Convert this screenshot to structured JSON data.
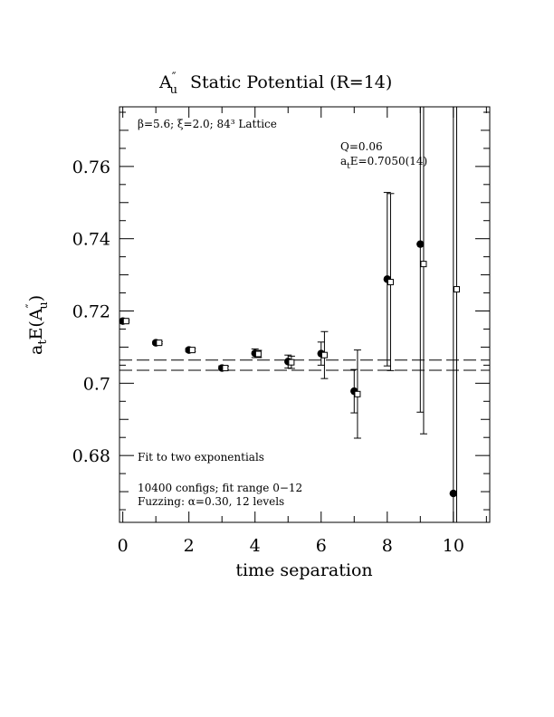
{
  "chart_data": {
    "type": "scatter",
    "title": "A″u Static Potential (R=14)",
    "title_parts": {
      "main": "A",
      "sup": "″",
      "sub": "u",
      "rest": "Static Potential (R=14)"
    },
    "xlabel": "time separation",
    "ylabel": "atE(A″u)",
    "ylabel_parts": {
      "a": "a",
      "a_sub": "t",
      "mid": "E(A",
      "sup": "″",
      "sub": "u",
      "end": ")"
    },
    "xlim": [
      -0.1,
      11.1
    ],
    "ylim": [
      0.6615,
      0.7765
    ],
    "x_ticks": [
      0,
      2,
      4,
      6,
      8,
      10
    ],
    "y_ticks": [
      0.68,
      0.7,
      0.72,
      0.74,
      0.76
    ],
    "x_tick_labels": [
      "0",
      "2",
      "4",
      "6",
      "8",
      "10"
    ],
    "y_tick_labels": [
      "0.68",
      "0.7",
      "0.72",
      "0.74",
      "0.76"
    ],
    "annotations": {
      "lattice": "β=5.6; ξ=2.0; 84³ Lattice",
      "q": "Q=0.06",
      "ate_prefix": "a",
      "ate_sub": "t",
      "ate_rest": "E=0.7050(14)",
      "fit": "Fit to two exponentials",
      "configs": "10400 configs; fit range 0−12",
      "fuzzing": "Fuzzing: α=0.30, 12 levels"
    },
    "series": [
      {
        "marker": "filled-circle",
        "x": [
          0,
          1,
          2,
          3,
          4,
          5,
          6,
          7,
          8,
          9,
          10
        ],
        "y": [
          0.7172,
          0.7112,
          0.7092,
          0.7042,
          0.7083,
          0.706,
          0.7082,
          0.6978,
          0.7288,
          0.7385,
          0.6695
        ],
        "err": [
          0.0004,
          0.0004,
          0.0005,
          0.0006,
          0.0012,
          0.0018,
          0.0032,
          0.006,
          0.024,
          0.0465,
          0.14
        ]
      },
      {
        "marker": "open-square",
        "x": [
          0.1,
          1.1,
          2.1,
          3.1,
          4.1,
          5.1,
          6.1,
          7.1,
          8.1,
          9.1,
          10.1
        ],
        "y": [
          0.7172,
          0.7112,
          0.7092,
          0.7042,
          0.7081,
          0.7058,
          0.7078,
          0.697,
          0.728,
          0.733,
          0.726
        ],
        "err": [
          0.0003,
          0.0003,
          0.0004,
          0.0005,
          0.001,
          0.0017,
          0.0065,
          0.0122,
          0.0245,
          0.047,
          0.07
        ]
      }
    ],
    "fit_band": {
      "center": 0.705,
      "error": 0.0014
    }
  }
}
